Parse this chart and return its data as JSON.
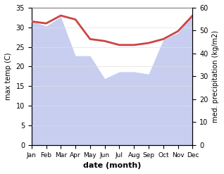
{
  "months": [
    "Jan",
    "Feb",
    "Mar",
    "Apr",
    "May",
    "Jun",
    "Jul",
    "Aug",
    "Sep",
    "Oct",
    "Nov",
    "Dec"
  ],
  "max_temp": [
    31.5,
    31.0,
    33.0,
    32.0,
    27.0,
    26.5,
    25.5,
    25.5,
    26.0,
    27.0,
    29.0,
    33.0
  ],
  "precipitation": [
    54,
    52,
    56,
    39,
    39,
    29,
    32,
    32,
    31,
    46,
    49,
    57
  ],
  "temp_color": "#cc4444",
  "precip_fill_color": "#c8cef0",
  "temp_ylim": [
    0,
    35
  ],
  "precip_ylim": [
    0,
    60
  ],
  "temp_yticks": [
    0,
    5,
    10,
    15,
    20,
    25,
    30,
    35
  ],
  "precip_yticks": [
    0,
    10,
    20,
    30,
    40,
    50,
    60
  ],
  "xlabel": "date (month)",
  "ylabel_left": "max temp (C)",
  "ylabel_right": "med. precipitation (kg/m2)",
  "bg_color": "#ffffff",
  "plot_bg_color": "#ffffff"
}
